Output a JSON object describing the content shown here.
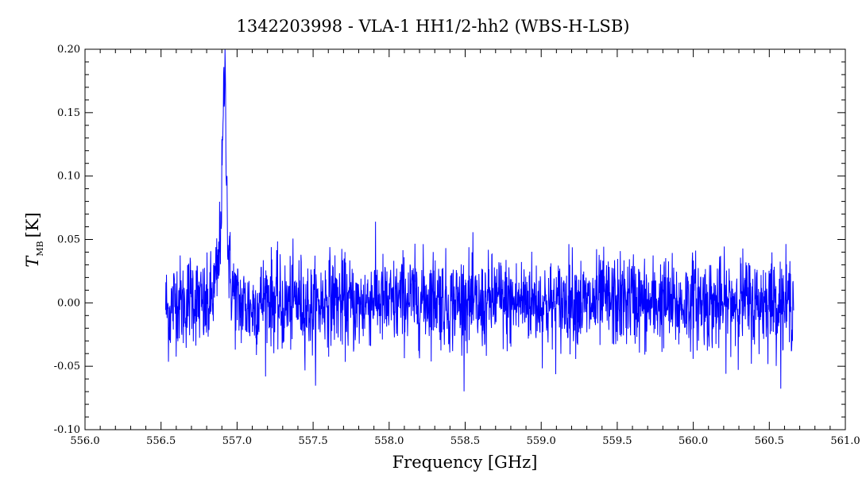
{
  "chart_data": {
    "type": "line",
    "title": "1342203998 - VLA-1 HH1/2-hh2 (WBS-H-LSB)",
    "xlabel": "Frequency [GHz]",
    "ylabel_main": "T",
    "ylabel_sub": "MB",
    "ylabel_unit": "[K]",
    "xlim": [
      556.0,
      561.0
    ],
    "ylim": [
      -0.1,
      0.2
    ],
    "x_ticks": [
      "556.0",
      "556.5",
      "557.0",
      "557.5",
      "558.0",
      "558.5",
      "559.0",
      "559.5",
      "560.0",
      "560.5",
      "561.0"
    ],
    "y_ticks": [
      "-0.10",
      "-0.05",
      "0.00",
      "0.05",
      "0.10",
      "0.15",
      "0.20"
    ],
    "grid": false,
    "colors": {
      "series": "#0000ff",
      "axes": "#000000"
    },
    "series": [
      {
        "x": [
          556.53,
          556.55,
          556.6,
          556.65,
          556.7,
          556.75,
          556.8,
          556.85,
          556.88,
          556.9,
          556.91,
          556.92,
          556.93,
          556.94,
          556.96,
          557.0,
          557.1,
          557.2,
          557.3,
          557.4,
          557.5,
          557.6,
          557.7,
          557.8,
          557.9,
          558.0,
          558.1,
          558.2,
          558.3,
          558.4,
          558.5,
          558.6,
          558.7,
          558.8,
          558.9,
          559.0,
          559.1,
          559.2,
          559.3,
          559.4,
          559.5,
          559.6,
          559.7,
          559.8,
          559.9,
          560.0,
          560.1,
          560.2,
          560.3,
          560.4,
          560.5,
          560.6,
          560.66
        ],
        "y": [
          0.0,
          -0.01,
          0.005,
          -0.003,
          0.008,
          0.0,
          -0.006,
          0.01,
          0.03,
          0.09,
          0.15,
          0.19,
          0.12,
          0.04,
          0.015,
          0.0,
          -0.005,
          0.006,
          -0.004,
          0.003,
          -0.006,
          0.005,
          0.0,
          -0.004,
          0.006,
          -0.003,
          0.004,
          0.002,
          0.006,
          -0.002,
          0.003,
          -0.005,
          0.004,
          -0.002,
          0.003,
          0.0,
          -0.004,
          0.005,
          -0.003,
          0.002,
          0.0,
          0.004,
          -0.003,
          0.002,
          -0.004,
          0.003,
          0.0,
          -0.003,
          0.004,
          -0.002,
          0.003,
          -0.001,
          0.002
        ],
        "noise_rms": 0.02,
        "n_points": 2200
      }
    ]
  }
}
